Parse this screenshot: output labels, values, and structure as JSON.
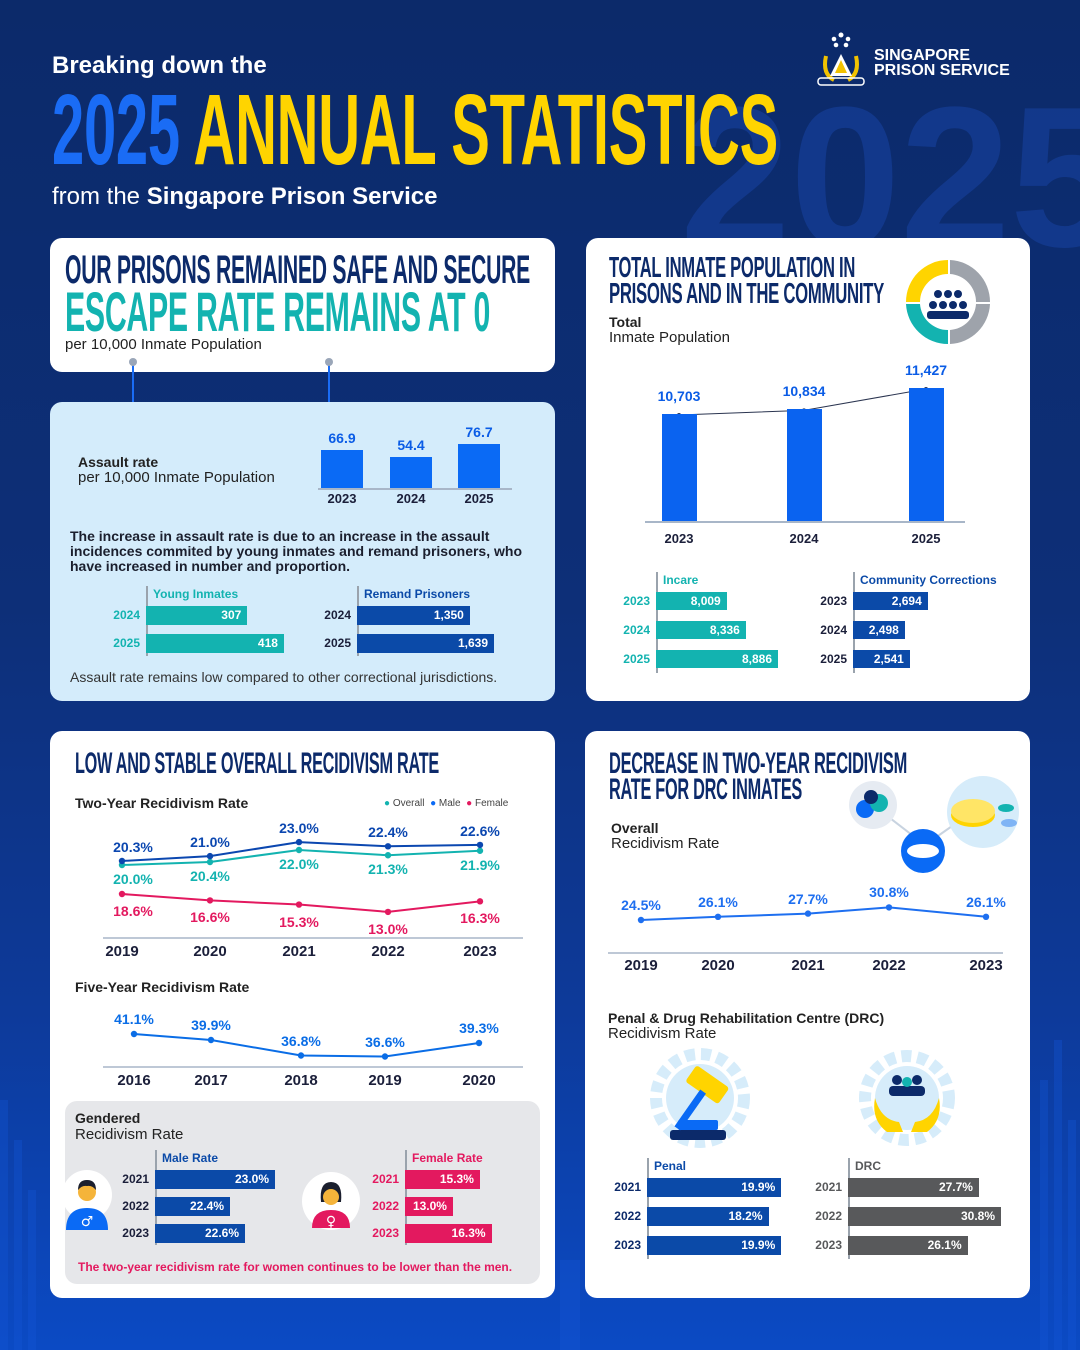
{
  "header": {
    "kicker": "Breaking down the",
    "title_year": "2025",
    "title_rest": "ANNUAL STATISTICS",
    "subtitle_prefix": "from the ",
    "subtitle_bold": "Singapore Prison Service",
    "bg_year": "2025"
  },
  "logo": {
    "line1": "SINGAPORE",
    "line2": "PRISON SERVICE"
  },
  "safety": {
    "title": "OUR PRISONS REMAINED SAFE AND SECURE",
    "headline": "ESCAPE RATE REMAINS AT 0",
    "unit": "per 10,000 Inmate Population"
  },
  "assault": {
    "label": "Assault rate",
    "unit": "per 10,000 Inmate Population",
    "explanation": "The increase in assault rate is due to an increase in the assault incidences commited by young inmates and remand prisoners, who have increased in number and proportion.",
    "footnote": "Assault rate remains low compared to other correctional jurisdictions."
  },
  "population": {
    "title_line1": "TOTAL INMATE POPULATION IN",
    "title_line2": "PRISONS AND IN THE COMMUNITY",
    "label": "Total",
    "unit": "Inmate Population"
  },
  "recidivism": {
    "title": "LOW AND STABLE OVERALL RECIDIVISM RATE",
    "gendered_label": "Gendered",
    "gendered_unit": "Recidivism Rate",
    "gendered_note": "The two-year recidivism rate for women continues to be lower than the men."
  },
  "drc": {
    "title_line1": "DECREASE IN TWO-YEAR RECIDIVISM",
    "title_line2": "RATE FOR DRC INMATES",
    "overall_label": "Overall",
    "overall_unit": "Recidivism Rate",
    "penal_label": "Penal & Drug Rehabilitation Centre (DRC)",
    "penal_unit": "Recidivism Rate"
  },
  "colors": {
    "navy": "#0c2a6a",
    "blue": "#0a6af5",
    "yellow": "#ffd400",
    "teal": "#13b3b0",
    "dark_blue": "#0b4aa8",
    "pink": "#e3195f",
    "grey": "#58595b",
    "light_panel": "#d4ecfb"
  },
  "chart_data": [
    {
      "type": "bar",
      "orientation": "vertical",
      "categories": [
        "2023",
        "2024",
        "2025"
      ],
      "values": [
        66.9,
        54.4,
        76.7
      ],
      "labels": [
        "66.9",
        "54.4",
        "76.7"
      ]
    },
    {
      "type": "bar",
      "orientation": "horizontal",
      "title": "Young Inmates",
      "categories": [
        "2024",
        "2025"
      ],
      "values": [
        307,
        418
      ],
      "labels": [
        "307",
        "418"
      ]
    },
    {
      "type": "bar",
      "orientation": "horizontal",
      "title": "Remand Prisoners",
      "categories": [
        "2024",
        "2025"
      ],
      "values": [
        1350,
        1639
      ],
      "labels": [
        "1,350",
        "1,639"
      ]
    },
    {
      "type": "bar",
      "orientation": "vertical",
      "categories": [
        "2023",
        "2024",
        "2025"
      ],
      "values": [
        10703,
        10834,
        11427
      ],
      "labels": [
        "10,703",
        "10,834",
        "11,427"
      ],
      "trend_line": true
    },
    {
      "type": "bar",
      "orientation": "horizontal",
      "title": "Incare",
      "categories": [
        "2023",
        "2024",
        "2025"
      ],
      "values": [
        8009,
        8336,
        8886
      ],
      "labels": [
        "8,009",
        "8,336",
        "8,886"
      ]
    },
    {
      "type": "bar",
      "orientation": "horizontal",
      "title": "Community Corrections",
      "categories": [
        "2023",
        "2024",
        "2025"
      ],
      "values": [
        2694,
        2498,
        2541
      ],
      "labels": [
        "2,694",
        "2,498",
        "2,541"
      ]
    },
    {
      "type": "line",
      "title": "Two-Year Recidivism Rate",
      "legend": "top-right",
      "categories": [
        "2019",
        "2020",
        "2021",
        "2022",
        "2023"
      ],
      "series": [
        {
          "name": "Overall",
          "color": "#13b3b0",
          "values": [
            20.0,
            20.4,
            22.0,
            21.3,
            21.9
          ],
          "labels": [
            "20.0%",
            "20.4%",
            "22.0%",
            "21.3%",
            "21.9%"
          ]
        },
        {
          "name": "Male",
          "color": "#0b47b0",
          "values": [
            20.3,
            21.0,
            23.0,
            22.4,
            22.6
          ],
          "labels": [
            "20.3%",
            "21.0%",
            "23.0%",
            "22.4%",
            "22.6%"
          ]
        },
        {
          "name": "Female",
          "color": "#e3195f",
          "values": [
            18.6,
            16.6,
            15.3,
            13.0,
            16.3
          ],
          "labels": [
            "18.6%",
            "16.6%",
            "15.3%",
            "13.0%",
            "16.3%"
          ]
        }
      ]
    },
    {
      "type": "line",
      "title": "Five-Year Recidivism Rate",
      "categories": [
        "2016",
        "2017",
        "2018",
        "2019",
        "2020"
      ],
      "series": [
        {
          "color": "#0a6de6",
          "values": [
            41.1,
            39.9,
            36.8,
            36.6,
            39.3
          ],
          "labels": [
            "41.1%",
            "39.9%",
            "36.8%",
            "36.6%",
            "39.3%"
          ]
        }
      ]
    },
    {
      "type": "bar",
      "orientation": "horizontal",
      "title": "Male Rate",
      "categories": [
        "2021",
        "2022",
        "2023"
      ],
      "values": [
        23.0,
        22.4,
        22.6
      ],
      "labels": [
        "23.0%",
        "22.4%",
        "22.6%"
      ]
    },
    {
      "type": "bar",
      "orientation": "horizontal",
      "title": "Female Rate",
      "categories": [
        "2021",
        "2022",
        "2023"
      ],
      "values": [
        15.3,
        13.0,
        16.3
      ],
      "labels": [
        "15.3%",
        "13.0%",
        "16.3%"
      ]
    },
    {
      "type": "line",
      "categories": [
        "2019",
        "2020",
        "2021",
        "2022",
        "2023"
      ],
      "series": [
        {
          "color": "#1e6ff0",
          "values": [
            24.5,
            26.1,
            27.7,
            30.8,
            26.1
          ],
          "labels": [
            "24.5%",
            "26.1%",
            "27.7%",
            "30.8%",
            "26.1%"
          ]
        }
      ]
    },
    {
      "type": "bar",
      "orientation": "horizontal",
      "title": "Penal",
      "categories": [
        "2021",
        "2022",
        "2023"
      ],
      "values": [
        19.9,
        18.2,
        19.9
      ],
      "labels": [
        "19.9%",
        "18.2%",
        "19.9%"
      ]
    },
    {
      "type": "bar",
      "orientation": "horizontal",
      "title": "DRC",
      "categories": [
        "2021",
        "2022",
        "2023"
      ],
      "values": [
        27.7,
        30.8,
        26.1
      ],
      "labels": [
        "27.7%",
        "30.8%",
        "26.1%"
      ]
    }
  ]
}
